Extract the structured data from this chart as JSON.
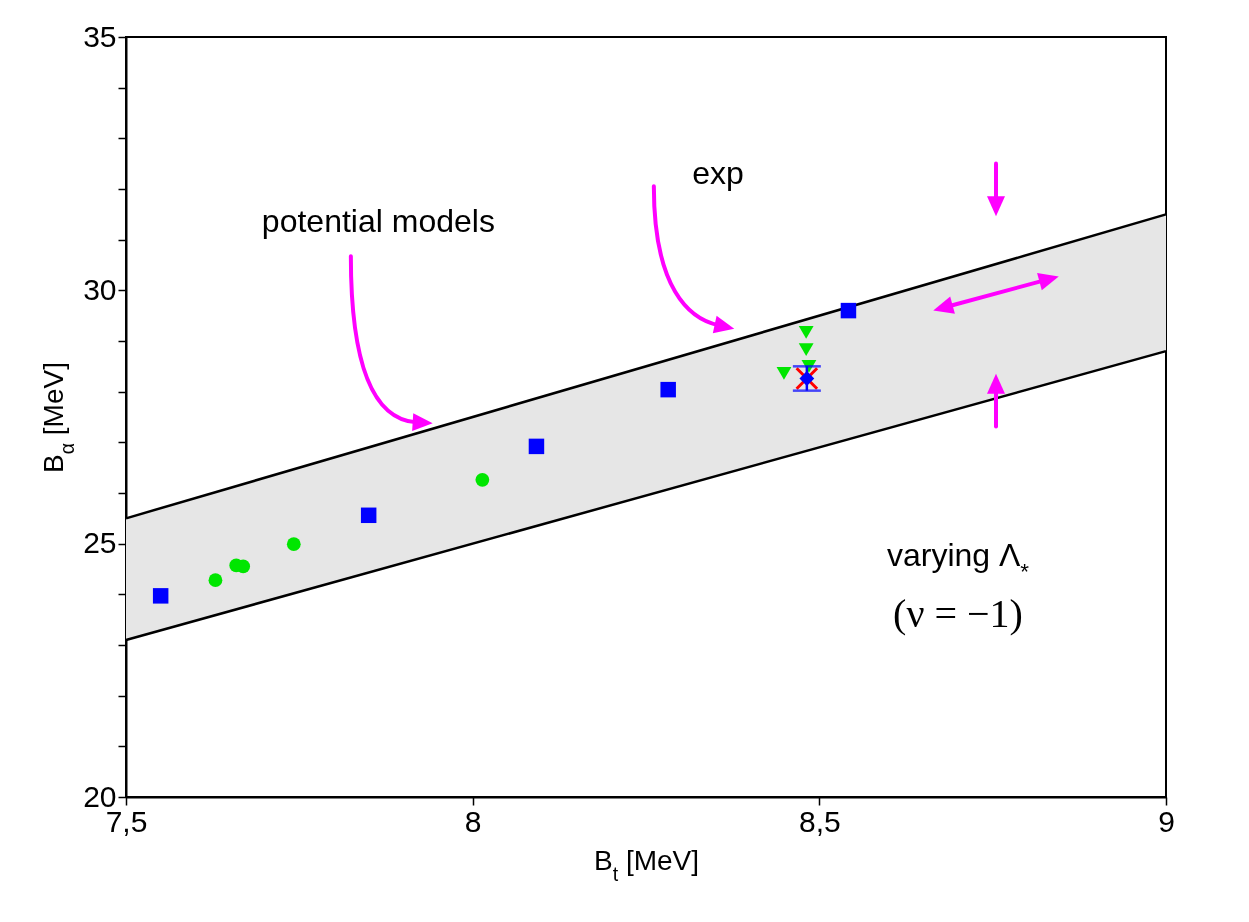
{
  "chart_data": {
    "type": "scatter",
    "xlabel": "B$_{t}$ [MeV]",
    "ylabel": "B$_{α}$ [MeV]",
    "xlim": [
      7.5,
      9
    ],
    "ylim": [
      20,
      35
    ],
    "xticks": [
      {
        "value": 7.5,
        "label": "7,5"
      },
      8,
      {
        "value": 8.5,
        "label": "8,5"
      },
      9
    ],
    "yticks": [
      20,
      {
        "value": 21,
        "label": null
      },
      {
        "value": 22,
        "label": null
      },
      {
        "value": 23,
        "label": null
      },
      {
        "value": 24,
        "label": null
      },
      25,
      {
        "value": 26,
        "label": null
      },
      {
        "value": 27,
        "label": null
      },
      {
        "value": 28,
        "label": null
      },
      {
        "value": 29,
        "label": null
      },
      30,
      {
        "value": 31,
        "label": null
      },
      {
        "value": 32,
        "label": null
      },
      {
        "value": 33,
        "label": null
      },
      {
        "value": 34,
        "label": null
      },
      35
    ],
    "series": [
      {
        "type": "line",
        "color": "#000000",
        "x": [
          7.5,
          9
        ],
        "values": [
          25.5,
          31.5
        ]
      },
      {
        "type": "line",
        "color": "#000000",
        "x": [
          7.5,
          9
        ],
        "values": [
          23.1,
          28.8
        ],
        "lower": [
          23.1,
          28.8
        ],
        "upper": [
          25.5,
          31.5
        ]
      },
      {
        "marker": "square",
        "color": "#0000ff",
        "x": [
          7.55,
          7.85,
          8.092,
          8.282,
          8.542
        ],
        "values": [
          23.97,
          25.56,
          26.92,
          28.04,
          29.6
        ]
      },
      {
        "marker": "circle",
        "color": "#00e600",
        "x": [
          7.629,
          7.659,
          7.669,
          7.742,
          8.014
        ],
        "values": [
          24.28,
          24.57,
          24.55,
          24.99,
          26.26
        ]
      },
      {
        "marker": "triangle",
        "color": "#00e600",
        "x": [
          8.449,
          8.481,
          8.481,
          8.485
        ],
        "values": [
          28.36,
          29.17,
          28.83,
          28.5
        ]
      },
      {
        "marker": "cross",
        "color": "#ff0000",
        "x": [
          8.482
        ],
        "values": [
          28.26
        ]
      },
      {
        "marker": "diamond",
        "color": "#0000ff",
        "x": [
          8.482
        ],
        "values": [
          28.26
        ],
        "errors": [
          0.24
        ]
      }
    ],
    "annotations": [
      "potential models",
      "exp",
      "varying Λ$_{*}$",
      "(ν = −1)"
    ]
  }
}
